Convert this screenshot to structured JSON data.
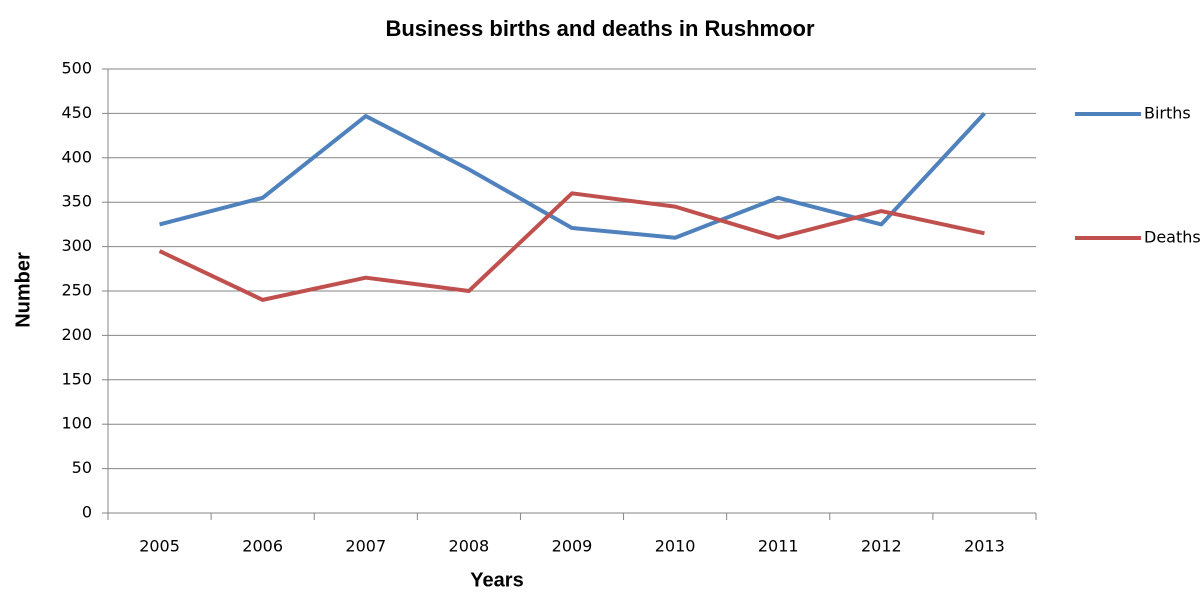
{
  "chart_data": {
    "type": "line",
    "title": "Business births and deaths in Rushmoor",
    "x_label": "Years",
    "y_label": "Number",
    "categories": [
      "2005",
      "2006",
      "2007",
      "2008",
      "2009",
      "2010",
      "2011",
      "2012",
      "2013"
    ],
    "series": [
      {
        "name": "Births",
        "color": "#4f81bd",
        "values": [
          325,
          355,
          447,
          387,
          321,
          310,
          355,
          325,
          450
        ]
      },
      {
        "name": "Deaths",
        "color": "#c0504d",
        "values": [
          295,
          240,
          265,
          250,
          360,
          345,
          310,
          340,
          315
        ]
      }
    ],
    "ylim": [
      0,
      500
    ],
    "yticks": [
      0,
      50,
      100,
      150,
      200,
      250,
      300,
      350,
      400,
      450,
      500
    ],
    "grid": true,
    "legend": "right"
  }
}
